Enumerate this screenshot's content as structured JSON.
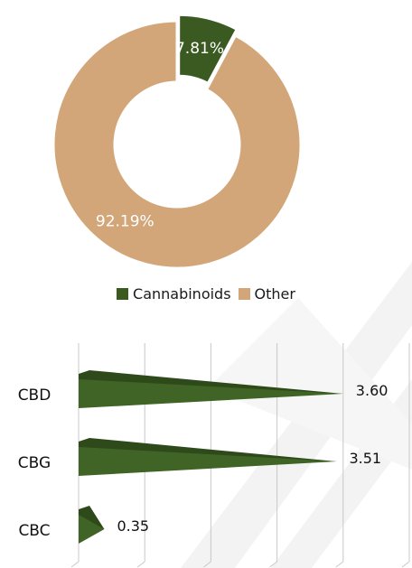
{
  "colors": {
    "cannabinoids": "#3a5a22",
    "other": "#d2a679",
    "bar_fill": "#3f6426",
    "bar_shade": "#2e4a1a",
    "grid": "#c8c8c8",
    "watermark": "#f1f1f1"
  },
  "chart_data": [
    {
      "type": "pie",
      "title": "",
      "categories": [
        "Cannabinoids",
        "Other"
      ],
      "values": [
        7.81,
        92.19
      ],
      "labels": [
        "7.81%",
        "92.19%"
      ],
      "donut": true,
      "legend": "bottom"
    },
    {
      "type": "bar",
      "orientation": "horizontal",
      "title": "",
      "categories": [
        "CBD",
        "CBG",
        "CBC"
      ],
      "values": [
        3.6,
        3.51,
        0.35
      ],
      "labels": [
        "3.60",
        "3.51",
        "0.35"
      ],
      "xlim": [
        0,
        4.5
      ],
      "grid": true
    }
  ]
}
